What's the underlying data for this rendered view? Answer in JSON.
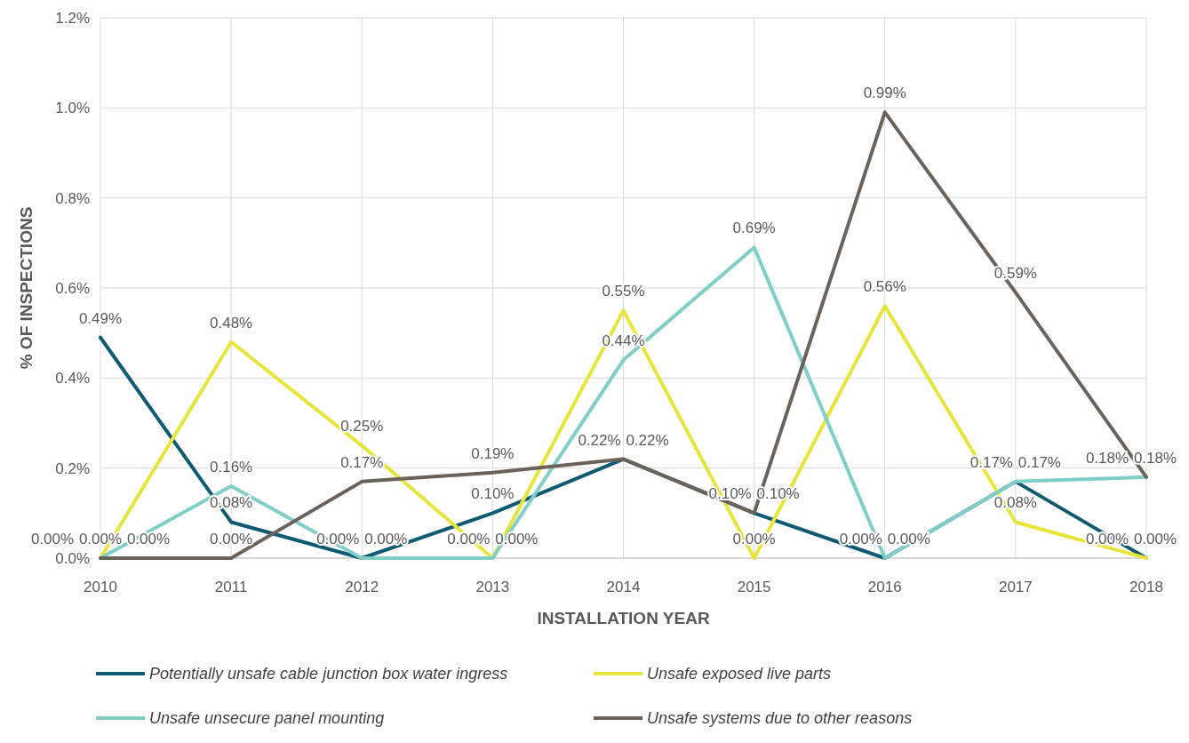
{
  "chart_data": {
    "type": "line",
    "xlabel": "INSTALLATION YEAR",
    "ylabel": "% OF INSPECTIONS",
    "x": [
      2010,
      2011,
      2012,
      2013,
      2014,
      2015,
      2016,
      2017,
      2018
    ],
    "xlim": [
      2010,
      2018
    ],
    "xticks": [
      2010,
      2011,
      2012,
      2013,
      2014,
      2015,
      2016,
      2017,
      2018
    ],
    "ylim": [
      0,
      1.2
    ],
    "yticks": [
      {
        "value": 0,
        "label": "0.0%"
      },
      {
        "value": 0.2,
        "label": "0.2%"
      },
      {
        "value": 0.4,
        "label": "0.4%"
      },
      {
        "value": 0.6,
        "label": "0.6%"
      },
      {
        "value": 0.8,
        "label": "0.8%"
      },
      {
        "value": 1.0,
        "label": "1.0%"
      },
      {
        "value": 1.2,
        "label": "1.2%"
      }
    ],
    "grid": true,
    "legend": "bottom",
    "marker": "none",
    "line_style": "solid",
    "series": [
      {
        "name": "Potentially unsafe cable junction box water ingress",
        "color": "#0e5a73",
        "values": [
          0.49,
          0.08,
          0,
          0.1,
          0.22,
          0.1,
          0,
          0.17,
          0
        ],
        "value_labels": [
          "0.49%",
          "0.08%",
          "0.00%",
          "0.10%",
          "0.22%",
          "0.10%",
          "0.00%",
          "0.17%",
          "0.00%"
        ]
      },
      {
        "name": "Unsafe exposed live parts",
        "color": "#e8e43a",
        "values": [
          0,
          0.48,
          0.25,
          0,
          0.55,
          0,
          0.56,
          0.08,
          0
        ],
        "value_labels": [
          "0.00%",
          "0.48%",
          "0.25%",
          "0.00%",
          "0.55%",
          "0.00%",
          "0.56%",
          "0.08%",
          "0.00%"
        ]
      },
      {
        "name": "Unsafe unsecure panel mounting",
        "color": "#7fcfc8",
        "values": [
          0,
          0.16,
          0,
          0,
          0.44,
          0.69,
          0,
          0.17,
          0.18
        ],
        "value_labels": [
          "0.00%",
          "0.16%",
          "0.00%",
          "0.00%",
          "0.44%",
          "0.69%",
          "0.00%",
          "0.17%",
          "0.18%"
        ]
      },
      {
        "name": "Unsafe systems due to other reasons",
        "color": "#6b625b",
        "values": [
          0,
          0,
          0.17,
          0.19,
          0.22,
          0.1,
          0.99,
          0.59,
          0.18
        ],
        "value_labels": [
          "0.00%",
          "0.00%",
          "0.17%",
          "0.19%",
          "0.22%",
          "0.10%",
          "0.99%",
          "0.59%",
          "0.18%"
        ]
      }
    ]
  }
}
